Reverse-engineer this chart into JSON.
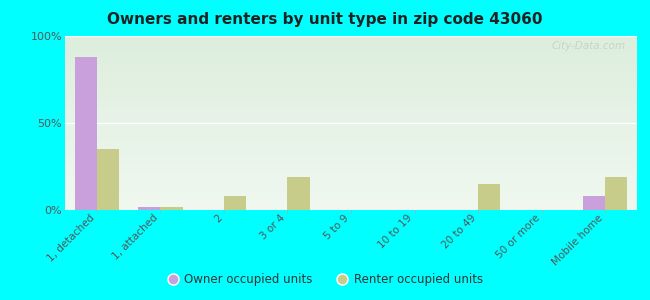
{
  "title": "Owners and renters by unit type in zip code 43060",
  "categories": [
    "1, detached",
    "1, attached",
    "2",
    "3 or 4",
    "5 to 9",
    "10 to 19",
    "20 to 49",
    "50 or more",
    "Mobile home"
  ],
  "owner_values": [
    88,
    2,
    0,
    0,
    0,
    0,
    0,
    0,
    8
  ],
  "renter_values": [
    35,
    2,
    8,
    19,
    0,
    0,
    15,
    0,
    19
  ],
  "owner_color": "#c9a0dc",
  "renter_color": "#c8cc8a",
  "background_color": "#00ffff",
  "plot_bg_color": "#eef5e8",
  "plot_bg_top": "#ddeedd",
  "plot_bg_bottom": "#f0f8f0",
  "bar_width": 0.35,
  "ylim": [
    0,
    100
  ],
  "yticks": [
    0,
    50,
    100
  ],
  "ytick_labels": [
    "0%",
    "50%",
    "100%"
  ],
  "legend_owner": "Owner occupied units",
  "legend_renter": "Renter occupied units",
  "watermark": "City-Data.com"
}
